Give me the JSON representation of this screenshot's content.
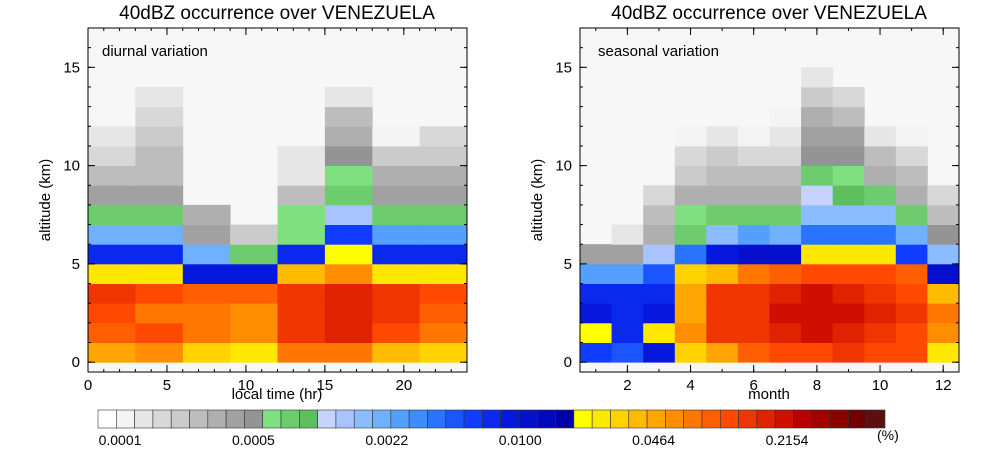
{
  "palette": [
    "#ffffff",
    "#f4f4f4",
    "#e6e6e6",
    "#d8d8d8",
    "#cbcbcb",
    "#bdbdbd",
    "#afafaf",
    "#a1a1a1",
    "#949494",
    "#7fe07f",
    "#6dcc6d",
    "#5ebe5e",
    "#c8d2ff",
    "#a9c3ff",
    "#8bbcff",
    "#6fb0ff",
    "#55a0ff",
    "#3d8dff",
    "#2a73ff",
    "#1a55ff",
    "#0f3cff",
    "#0a28ee",
    "#0618dd",
    "#0410cc",
    "#0208bb",
    "#0000aa",
    "#ffff00",
    "#ffe800",
    "#ffd200",
    "#ffbb00",
    "#ffa400",
    "#ff8d00",
    "#ff7600",
    "#ff5f00",
    "#ff4800",
    "#f13500",
    "#e02200",
    "#cf1000",
    "#b80000",
    "#a40000",
    "#8c0000",
    "#730000",
    "#5a1010"
  ],
  "colorbar": {
    "tick_labels": [
      "0.0001",
      "0.0005",
      "0.0022",
      "0.0100",
      "0.0464",
      "0.2154"
    ],
    "unit": "(%)"
  },
  "chart_data": [
    {
      "type": "heatmap",
      "title": "40dBZ occurrence over VENEZUELA",
      "annotation": "diurnal variation",
      "xlabel": "local time (hr)",
      "ylabel": "altitude (km)",
      "xlim": [
        0,
        24
      ],
      "ylim": [
        -0.5,
        17
      ],
      "x_ticks": [
        0,
        5,
        10,
        15,
        20
      ],
      "y_ticks": [
        0,
        5,
        10,
        15
      ],
      "x_edges": [
        0,
        3,
        6,
        9,
        12,
        15,
        18,
        21,
        24
      ],
      "y_edges": [
        0,
        1,
        2,
        3,
        4,
        5,
        6,
        7,
        8,
        9,
        10,
        11,
        12,
        13,
        14,
        15,
        16,
        17
      ],
      "levels": [
        [
          30,
          31,
          28,
          27,
          32,
          32,
          29,
          28
        ],
        [
          33,
          34,
          32,
          31,
          35,
          36,
          34,
          32
        ],
        [
          34,
          32,
          32,
          31,
          35,
          36,
          35,
          33
        ],
        [
          35,
          34,
          33,
          33,
          35,
          36,
          35,
          34
        ],
        [
          27,
          27,
          22,
          22,
          29,
          31,
          27,
          27
        ],
        [
          21,
          21,
          15,
          10,
          21,
          26,
          21,
          21
        ],
        [
          15,
          15,
          7,
          4,
          9,
          20,
          16,
          16
        ],
        [
          10,
          10,
          6,
          -1,
          9,
          13,
          10,
          10
        ],
        [
          7,
          7,
          -1,
          -1,
          5,
          10,
          7,
          7
        ],
        [
          5,
          5,
          -1,
          -1,
          2,
          9,
          6,
          6
        ],
        [
          3,
          5,
          -1,
          -1,
          2,
          8,
          4,
          4
        ],
        [
          2,
          4,
          -1,
          -1,
          -1,
          6,
          1,
          3
        ],
        [
          -1,
          3,
          -1,
          -1,
          -1,
          5,
          -1,
          -1
        ],
        [
          -1,
          2,
          -1,
          -1,
          -1,
          2,
          -1,
          -1
        ],
        [
          -1,
          -1,
          -1,
          -1,
          -1,
          -1,
          -1,
          -1
        ],
        [
          -1,
          -1,
          -1,
          -1,
          -1,
          -1,
          -1,
          -1
        ],
        [
          -1,
          -1,
          -1,
          -1,
          -1,
          -1,
          -1,
          -1
        ]
      ]
    },
    {
      "type": "heatmap",
      "title": "40dBZ occurrence over VENEZUELA",
      "annotation": "seasonal variation",
      "xlabel": "month",
      "ylabel": "altitude (km)",
      "xlim": [
        0.5,
        12.5
      ],
      "ylim": [
        -0.5,
        17
      ],
      "x_ticks": [
        2,
        4,
        6,
        8,
        10,
        12
      ],
      "y_ticks": [
        0,
        5,
        10,
        15
      ],
      "x_edges": [
        0.5,
        1.5,
        2.5,
        3.5,
        4.5,
        5.5,
        6.5,
        7.5,
        8.5,
        9.5,
        10.5,
        11.5,
        12.5
      ],
      "y_edges": [
        0,
        1,
        2,
        3,
        4,
        5,
        6,
        7,
        8,
        9,
        10,
        11,
        12,
        13,
        14,
        15,
        16,
        17
      ],
      "levels": [
        [
          20,
          19,
          22,
          28,
          30,
          33,
          34,
          34,
          35,
          34,
          34,
          27
        ],
        [
          26,
          21,
          27,
          31,
          35,
          35,
          36,
          37,
          36,
          35,
          34,
          31
        ],
        [
          22,
          21,
          22,
          30,
          35,
          35,
          37,
          37,
          37,
          36,
          35,
          32
        ],
        [
          21,
          21,
          21,
          30,
          35,
          35,
          36,
          37,
          36,
          35,
          34,
          29
        ],
        [
          16,
          16,
          19,
          28,
          29,
          32,
          33,
          34,
          34,
          34,
          33,
          23
        ],
        [
          7,
          7,
          13,
          18,
          22,
          23,
          23,
          27,
          27,
          27,
          20,
          14
        ],
        [
          -1,
          2,
          6,
          10,
          14,
          16,
          15,
          18,
          18,
          18,
          15,
          8
        ],
        [
          -1,
          -1,
          5,
          9,
          10,
          10,
          10,
          14,
          14,
          14,
          10,
          5
        ],
        [
          -1,
          -1,
          3,
          6,
          6,
          6,
          6,
          12,
          11,
          10,
          6,
          3
        ],
        [
          -1,
          -1,
          -1,
          4,
          5,
          5,
          5,
          10,
          9,
          6,
          5,
          -1
        ],
        [
          -1,
          -1,
          -1,
          3,
          4,
          3,
          3,
          8,
          8,
          5,
          3,
          -1
        ],
        [
          -1,
          -1,
          -1,
          1,
          2,
          1,
          2,
          7,
          7,
          2,
          1,
          -1
        ],
        [
          -1,
          -1,
          -1,
          -1,
          -1,
          -1,
          1,
          6,
          5,
          -1,
          -1,
          -1
        ],
        [
          -1,
          -1,
          -1,
          -1,
          -1,
          -1,
          -1,
          4,
          3,
          -1,
          -1,
          -1
        ],
        [
          -1,
          -1,
          -1,
          -1,
          -1,
          -1,
          -1,
          2,
          -1,
          -1,
          -1,
          -1
        ],
        [
          -1,
          -1,
          -1,
          -1,
          -1,
          -1,
          -1,
          -1,
          -1,
          -1,
          -1,
          -1
        ],
        [
          -1,
          -1,
          -1,
          -1,
          -1,
          -1,
          -1,
          -1,
          -1,
          -1,
          -1,
          -1
        ]
      ]
    }
  ]
}
